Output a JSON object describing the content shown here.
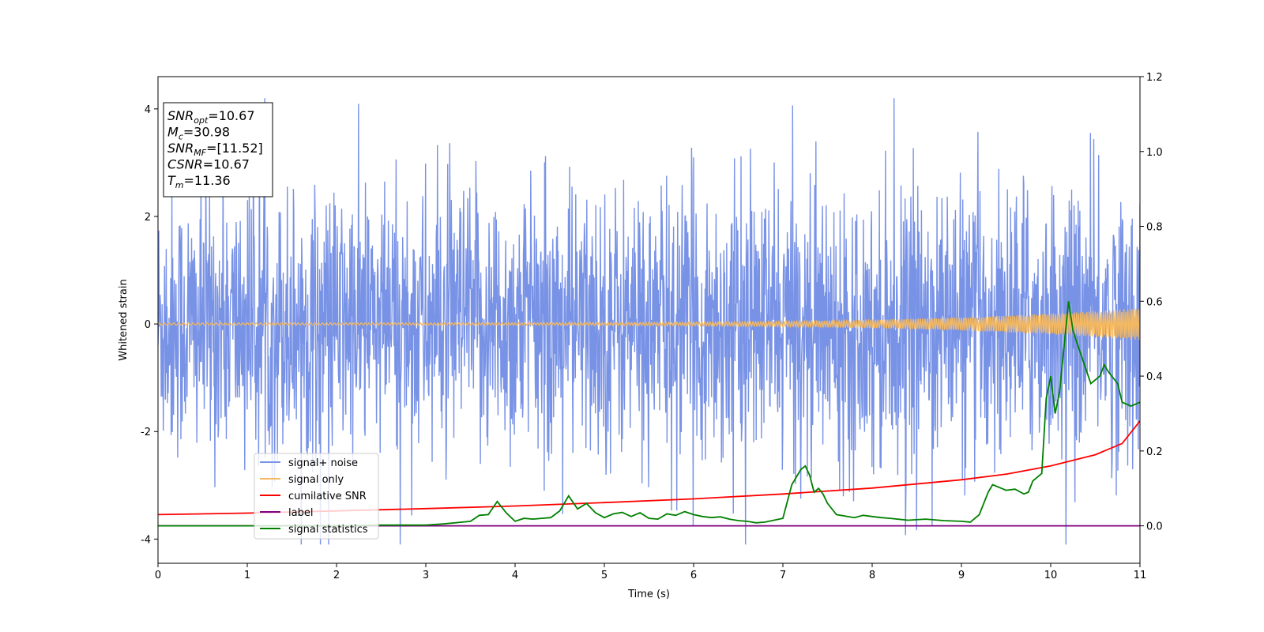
{
  "chart_data": {
    "type": "line",
    "title": "",
    "xlabel": "Time (s)",
    "ylabel": "Whitened strain",
    "xlim": [
      0,
      11
    ],
    "ylim": [
      -4.45,
      4.6
    ],
    "y2lim": [
      -0.1,
      1.2
    ],
    "xticks": [
      0,
      1,
      2,
      3,
      4,
      5,
      6,
      7,
      8,
      9,
      10,
      11
    ],
    "yticks": [
      -4,
      -2,
      0,
      2,
      4
    ],
    "y2ticks": [
      "0.0",
      "0.2",
      "0.4",
      "0.6",
      "0.8",
      "1.0",
      "1.2"
    ],
    "grid": false,
    "legend_position": "lower-left",
    "info_box": {
      "position": "top-left",
      "lines": [
        {
          "base": "SNR",
          "sub": "opt",
          "value": "=10.67"
        },
        {
          "base": "M",
          "sub": "c",
          "value": "=30.98"
        },
        {
          "base": "SNR",
          "sub": "MF",
          "value": "=[11.52]"
        },
        {
          "base": "CSNR",
          "sub": "",
          "value": "=10.67"
        },
        {
          "base": "T",
          "sub": "m",
          "value": "=11.36"
        }
      ]
    },
    "series": [
      {
        "name": "signal+ noise",
        "axis": "left",
        "color": "#7892e6",
        "approximate": "noise band roughly between -2.5 and 2.5 with spikes to about ±4"
      },
      {
        "name": "signal only",
        "axis": "left",
        "color": "#f4b860",
        "approximate": "chirp oscillation near 0, amplitude growing to about 0.3 by t=11"
      },
      {
        "name": "cumilative SNR",
        "axis": "right",
        "color": "#ff0000",
        "x": [
          0,
          1,
          2,
          3,
          4,
          5,
          6,
          7,
          8,
          9,
          9.5,
          10,
          10.5,
          10.8,
          11
        ],
        "y": [
          0.03,
          0.034,
          0.04,
          0.046,
          0.053,
          0.062,
          0.072,
          0.085,
          0.101,
          0.123,
          0.138,
          0.16,
          0.19,
          0.22,
          0.28
        ]
      },
      {
        "name": "label",
        "axis": "right",
        "color": "#800080",
        "x": [
          0,
          11
        ],
        "y": [
          0.0,
          0.0
        ]
      },
      {
        "name": "signal statistics",
        "axis": "right",
        "color": "#008000",
        "x": [
          0,
          1,
          2,
          2.5,
          3,
          3.2,
          3.5,
          3.6,
          3.7,
          3.8,
          3.9,
          4.0,
          4.1,
          4.2,
          4.3,
          4.4,
          4.5,
          4.6,
          4.7,
          4.8,
          4.9,
          5.0,
          5.1,
          5.2,
          5.3,
          5.4,
          5.5,
          5.6,
          5.7,
          5.8,
          5.9,
          6.0,
          6.1,
          6.2,
          6.3,
          6.4,
          6.5,
          6.6,
          6.7,
          6.8,
          6.9,
          7.0,
          7.1,
          7.2,
          7.25,
          7.3,
          7.35,
          7.4,
          7.45,
          7.5,
          7.6,
          7.8,
          7.9,
          8.0,
          8.1,
          8.2,
          8.4,
          8.6,
          8.8,
          9.0,
          9.1,
          9.2,
          9.3,
          9.35,
          9.45,
          9.5,
          9.6,
          9.7,
          9.75,
          9.8,
          9.9,
          9.95,
          10.0,
          10.05,
          10.1,
          10.2,
          10.25,
          10.35,
          10.45,
          10.55,
          10.6,
          10.65,
          10.75,
          10.8,
          10.9,
          11.0
        ],
        "y": [
          0.0,
          0.0,
          0.0,
          0.002,
          0.002,
          0.005,
          0.012,
          0.028,
          0.03,
          0.065,
          0.035,
          0.012,
          0.02,
          0.018,
          0.02,
          0.022,
          0.04,
          0.08,
          0.045,
          0.06,
          0.035,
          0.022,
          0.032,
          0.036,
          0.025,
          0.035,
          0.02,
          0.018,
          0.032,
          0.028,
          0.038,
          0.03,
          0.025,
          0.022,
          0.024,
          0.018,
          0.014,
          0.012,
          0.008,
          0.01,
          0.015,
          0.02,
          0.11,
          0.15,
          0.16,
          0.135,
          0.09,
          0.1,
          0.085,
          0.06,
          0.03,
          0.022,
          0.028,
          0.025,
          0.022,
          0.02,
          0.015,
          0.018,
          0.014,
          0.012,
          0.01,
          0.03,
          0.09,
          0.11,
          0.1,
          0.095,
          0.098,
          0.085,
          0.09,
          0.12,
          0.14,
          0.34,
          0.4,
          0.3,
          0.36,
          0.6,
          0.52,
          0.45,
          0.38,
          0.4,
          0.43,
          0.41,
          0.38,
          0.33,
          0.32,
          0.33
        ]
      }
    ]
  }
}
